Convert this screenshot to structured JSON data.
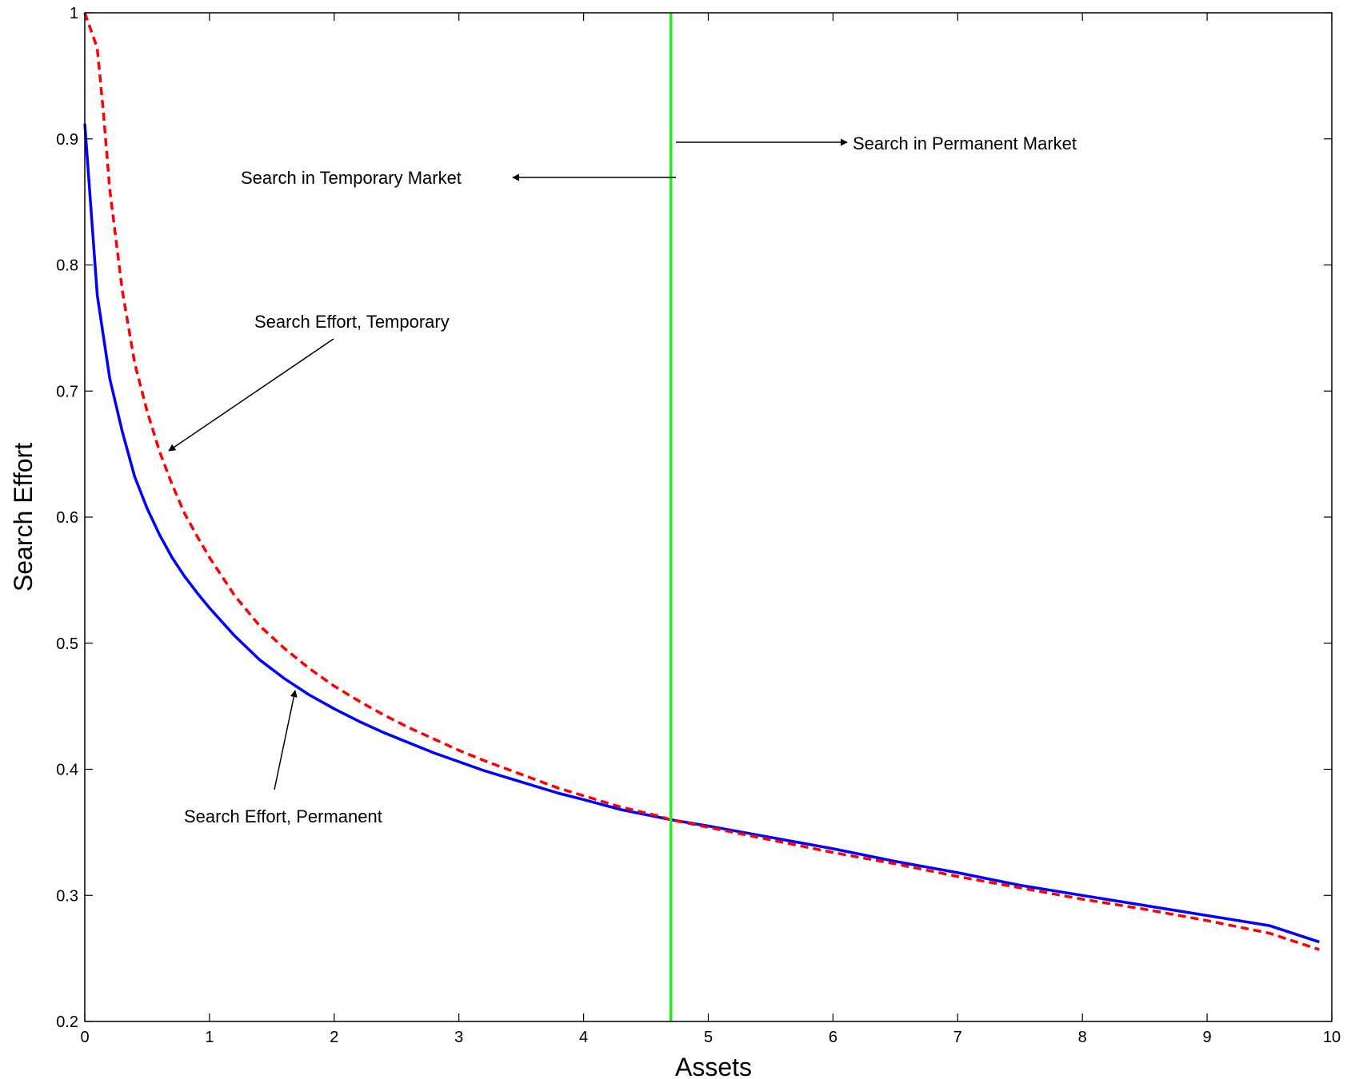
{
  "chart_data": {
    "type": "line",
    "title": "",
    "xlabel": "Assets",
    "ylabel": "Search Effort",
    "xlim": [
      0,
      10
    ],
    "ylim": [
      0.2,
      1
    ],
    "xticks": [
      "0",
      "1",
      "2",
      "3",
      "4",
      "5",
      "6",
      "7",
      "8",
      "9",
      "10"
    ],
    "yticks": [
      "0.2",
      "0.3",
      "0.4",
      "0.5",
      "0.6",
      "0.7",
      "0.8",
      "0.9",
      "1"
    ],
    "grid": false,
    "series": [
      {
        "line_style": "solid",
        "color": "#0000ff",
        "x": [
          0,
          0.1,
          0.2,
          0.3,
          0.4,
          0.5,
          0.6,
          0.7,
          0.8,
          0.9,
          1.0,
          1.2,
          1.4,
          1.6,
          1.8,
          2.0,
          2.2,
          2.4,
          2.6,
          2.8,
          3.0,
          3.2,
          3.5,
          3.8,
          4.0,
          4.3,
          4.6,
          4.7,
          5.0,
          5.5,
          6.0,
          6.5,
          7.0,
          7.5,
          8.0,
          8.5,
          9.0,
          9.5,
          9.9
        ],
        "y": [
          0.912,
          0.776,
          0.71,
          0.668,
          0.632,
          0.607,
          0.586,
          0.568,
          0.553,
          0.54,
          0.528,
          0.506,
          0.487,
          0.472,
          0.459,
          0.448,
          0.438,
          0.429,
          0.421,
          0.413,
          0.406,
          0.399,
          0.39,
          0.381,
          0.376,
          0.368,
          0.362,
          0.36,
          0.355,
          0.346,
          0.337,
          0.327,
          0.318,
          0.308,
          0.3,
          0.292,
          0.284,
          0.276,
          0.263
        ]
      },
      {
        "line_style": "dashed",
        "color": "#ff0000",
        "x": [
          0,
          0.1,
          0.15,
          0.2,
          0.3,
          0.4,
          0.5,
          0.6,
          0.7,
          0.8,
          0.9,
          1.0,
          1.2,
          1.4,
          1.6,
          1.8,
          2.0,
          2.2,
          2.4,
          2.6,
          2.8,
          3.0,
          3.2,
          3.5,
          3.8,
          4.0,
          4.3,
          4.6,
          4.7,
          5.0,
          5.5,
          6.0,
          6.5,
          7.0,
          7.5,
          8.0,
          8.5,
          9.0,
          9.5,
          9.9
        ],
        "y": [
          1.0,
          0.972,
          0.92,
          0.86,
          0.78,
          0.722,
          0.684,
          0.652,
          0.626,
          0.603,
          0.585,
          0.568,
          0.538,
          0.514,
          0.496,
          0.48,
          0.466,
          0.454,
          0.443,
          0.433,
          0.424,
          0.415,
          0.407,
          0.396,
          0.385,
          0.379,
          0.37,
          0.363,
          0.36,
          0.354,
          0.344,
          0.334,
          0.325,
          0.315,
          0.306,
          0.297,
          0.289,
          0.28,
          0.27,
          0.257
        ]
      }
    ],
    "threshold": {
      "x": 4.7,
      "color": "#22ee22"
    },
    "annotations": [
      {
        "text": "Search in Permanent Market"
      },
      {
        "text": "Search in Temporary Market"
      },
      {
        "text": "Search Effort, Temporary"
      },
      {
        "text": "Search Effort, Permanent"
      }
    ]
  }
}
